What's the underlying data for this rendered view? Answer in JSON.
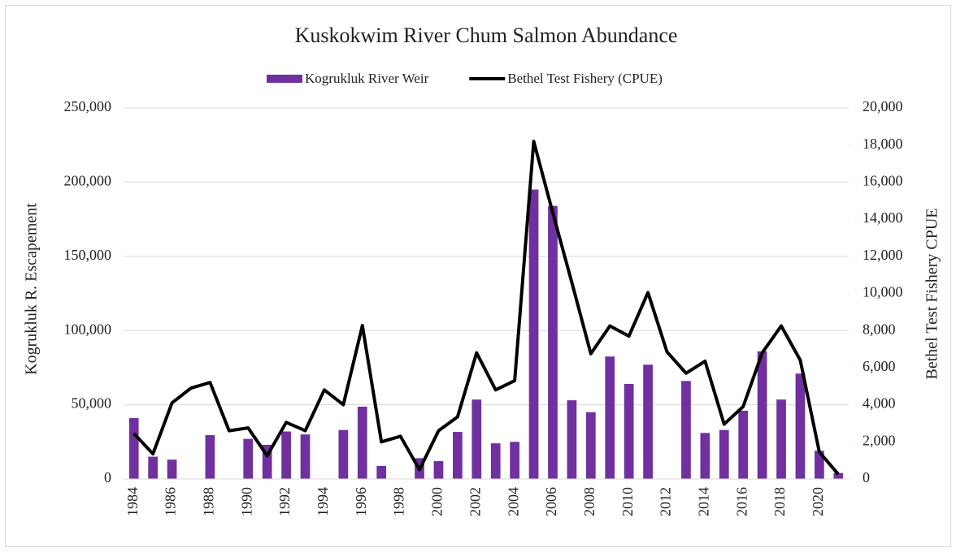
{
  "chart_data": {
    "type": "bar-line",
    "title": "Kuskokwim River Chum Salmon Abundance",
    "y_label": "Kogrukluk R. Escapement",
    "y2_label": "Bethel Test Fishery CPUE",
    "legend": "top",
    "categories": [
      "1984",
      null,
      "1986",
      null,
      "1988",
      null,
      "1990",
      null,
      "1992",
      null,
      "1994",
      null,
      "1996",
      null,
      "1998",
      null,
      "2000",
      null,
      "2002",
      null,
      "2004",
      null,
      "2006",
      null,
      "2008",
      null,
      "2010",
      null,
      "2012",
      null,
      "2014",
      null,
      "2016",
      null,
      "2018",
      null,
      "2020",
      null
    ],
    "series": [
      {
        "name": "Kogrukluk River Weir",
        "type": "bar",
        "color": "#7030a0",
        "values": [
          41000,
          15000,
          13000,
          null,
          29500,
          null,
          27000,
          23000,
          32000,
          30000,
          null,
          33000,
          48700,
          8800,
          null,
          14000,
          12000,
          31700,
          53500,
          24000,
          25000,
          195000,
          184000,
          53000,
          45000,
          82500,
          64000,
          77000,
          null,
          66000,
          31000,
          33000,
          46000,
          86000,
          53500,
          71000,
          19000,
          4000
        ]
      },
      {
        "name": "Bethel Test Fishery (CPUE)",
        "type": "line",
        "color": "#000000",
        "axis": "y2",
        "values": [
          2450,
          1350,
          4100,
          4900,
          5200,
          2600,
          2750,
          1250,
          3050,
          2600,
          4800,
          4000,
          8270,
          2000,
          2300,
          500,
          2600,
          3350,
          6800,
          4800,
          5300,
          18200,
          14350,
          10600,
          6750,
          8250,
          7700,
          10050,
          6850,
          5700,
          6350,
          2950,
          3900,
          6800,
          8250,
          6400,
          1450,
          250
        ]
      }
    ],
    "ylim": [
      0,
      250000
    ],
    "yticks": [
      0,
      {
        "value": 50000,
        "label": "50,000"
      },
      {
        "value": 100000,
        "label": "100,000"
      },
      {
        "value": 150000,
        "label": "150,000"
      },
      {
        "value": 200000,
        "label": "200,000"
      },
      {
        "value": 250000,
        "label": "250,000"
      }
    ],
    "y2lim": [
      0,
      20000
    ],
    "y2ticks": [
      0,
      {
        "value": 2000,
        "label": "2,000"
      },
      {
        "value": 4000,
        "label": "4,000"
      },
      {
        "value": 6000,
        "label": "6,000"
      },
      {
        "value": 8000,
        "label": "8,000"
      },
      {
        "value": 10000,
        "label": "10,000"
      },
      {
        "value": 12000,
        "label": "12,000"
      },
      {
        "value": 14000,
        "label": "14,000"
      },
      {
        "value": 16000,
        "label": "16,000"
      },
      {
        "value": 18000,
        "label": "18,000"
      },
      {
        "value": 20000,
        "label": "20,000"
      }
    ],
    "grid": true
  }
}
